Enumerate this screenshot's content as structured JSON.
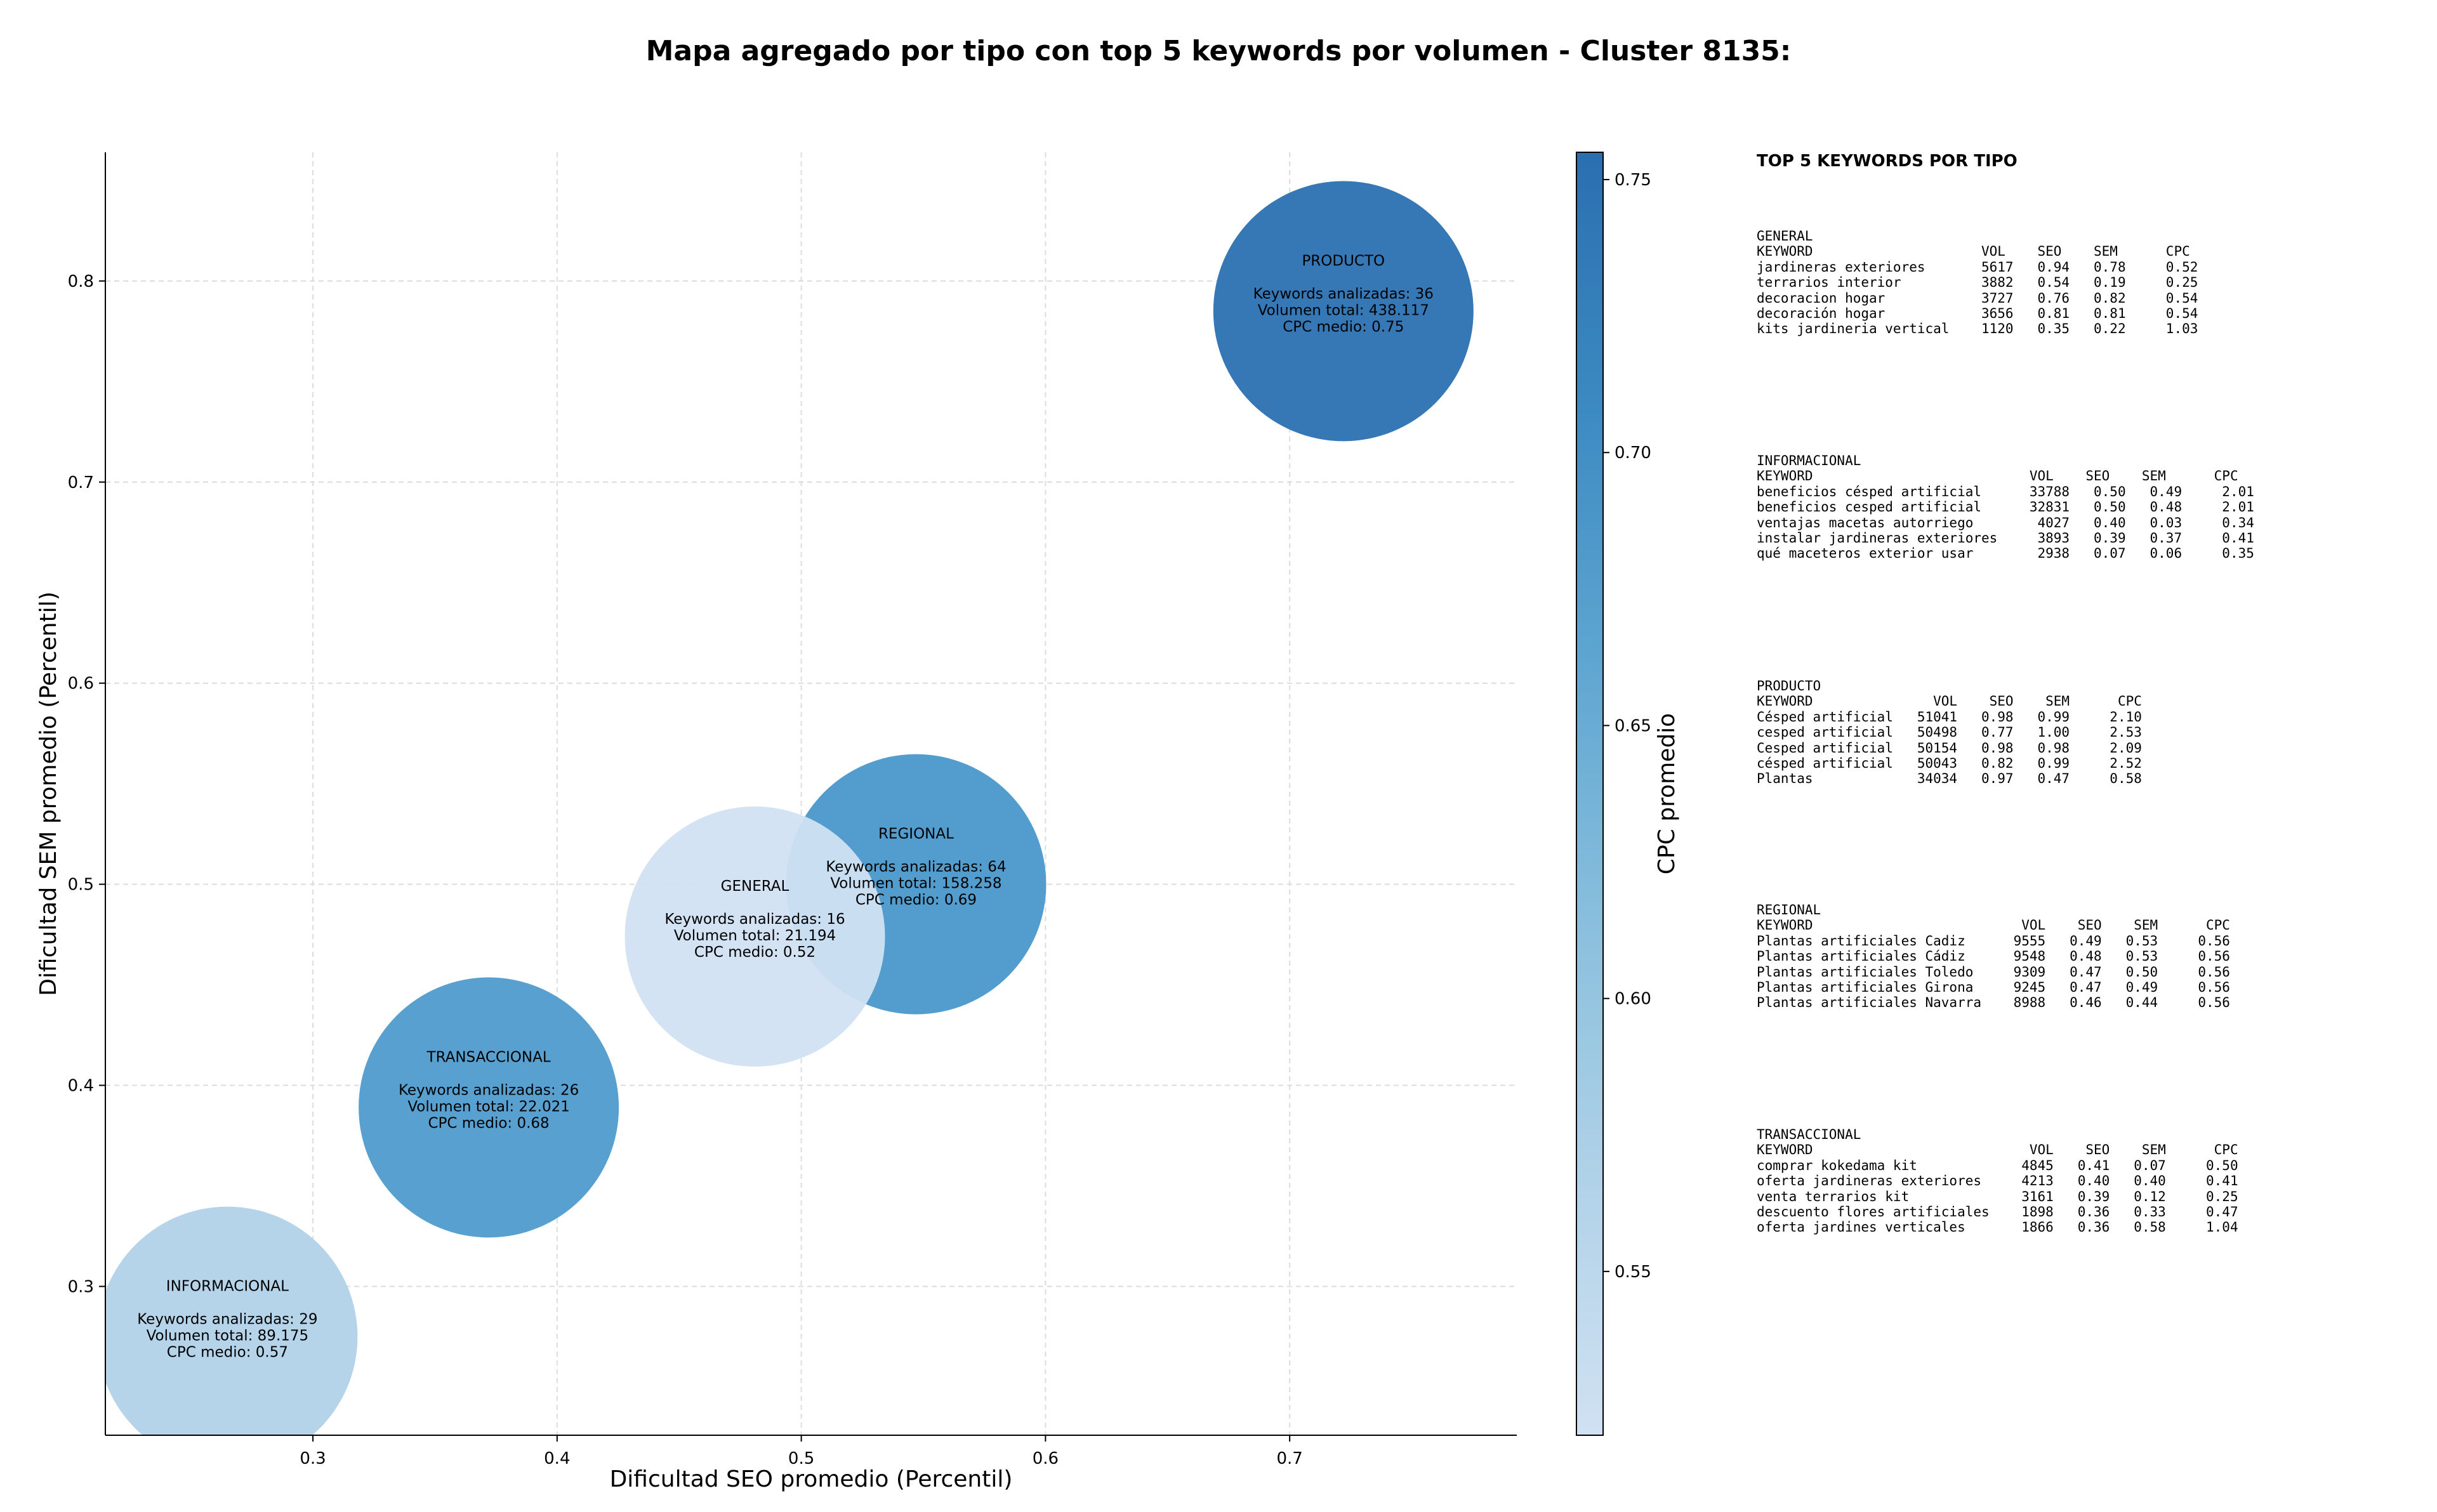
{
  "chart_data": {
    "type": "scatter",
    "title": "Mapa agregado por tipo con top 5 keywords por volumen - Cluster 8135:",
    "xlabel": "Dificultad SEO promedio (Percentil)",
    "ylabel": "Dificultad SEM promedio (Percentil)",
    "xlim": [
      0.215,
      0.793
    ],
    "ylim": [
      0.226,
      0.864
    ],
    "xticks": [
      "0.3",
      "0.4",
      "0.5",
      "0.6",
      "0.7"
    ],
    "yticks": [
      "0.3",
      "0.4",
      "0.5",
      "0.6",
      "0.7",
      "0.8"
    ],
    "grid": true,
    "colorbar": {
      "label": "CPC promedio",
      "range": [
        0.52,
        0.755
      ],
      "ticks": [
        "0.55",
        "0.60",
        "0.65",
        "0.70",
        "0.75"
      ],
      "colors": [
        "#d0e1f2",
        "#b0d2e8",
        "#89bfdd",
        "#5fa6d1",
        "#3c8ac2",
        "#2a6fb0"
      ]
    },
    "points": [
      {
        "label": "PRODUCTO",
        "x": 0.722,
        "y": 0.785,
        "keywords": "Keywords analizadas: 36",
        "volume": "Volumen total: 438.117",
        "cpc_text": "CPC medio: 0.75",
        "cpc": 0.75,
        "color": "#2b70b1"
      },
      {
        "label": "REGIONAL",
        "x": 0.547,
        "y": 0.5,
        "keywords": "Keywords analizadas: 64",
        "volume": "Volumen total: 158.258",
        "cpc_text": "CPC medio: 0.69",
        "cpc": 0.69,
        "color": "#4a98cb"
      },
      {
        "label": "GENERAL",
        "x": 0.481,
        "y": 0.474,
        "keywords": "Keywords analizadas: 16",
        "volume": "Volumen total: 21.194",
        "cpc_text": "CPC medio: 0.52",
        "cpc": 0.52,
        "color": "#d1e2f3"
      },
      {
        "label": "TRANSACCIONAL",
        "x": 0.372,
        "y": 0.389,
        "keywords": "Keywords analizadas: 26",
        "volume": "Volumen total: 22.021",
        "cpc_text": "CPC medio: 0.68",
        "cpc": 0.68,
        "color": "#4f9bcd"
      },
      {
        "label": "INFORMACIONAL",
        "x": 0.265,
        "y": 0.275,
        "keywords": "Keywords analizadas: 29",
        "volume": "Volumen total: 89.175",
        "cpc_text": "CPC medio: 0.57",
        "cpc": 0.57,
        "color": "#b2d2e8"
      }
    ]
  },
  "table": {
    "heading": "TOP 5 KEYWORDS POR TIPO",
    "blocks": [
      {
        "name": "GENERAL",
        "lines": [
          "GENERAL",
          "KEYWORD                     VOL    SEO    SEM      CPC",
          "jardineras exteriores       5617   0.94   0.78     0.52",
          "terrarios interior          3882   0.54   0.19     0.25",
          "decoracion hogar            3727   0.76   0.82     0.54",
          "decoración hogar            3656   0.81   0.81     0.54",
          "kits jardineria vertical    1120   0.35   0.22     1.03"
        ]
      },
      {
        "name": "INFORMACIONAL",
        "lines": [
          "INFORMACIONAL",
          "KEYWORD                           VOL    SEO    SEM      CPC",
          "beneficios césped artificial      33788   0.50   0.49     2.01",
          "beneficios cesped artificial      32831   0.50   0.48     2.01",
          "ventajas macetas autorriego        4027   0.40   0.03     0.34",
          "instalar jardineras exteriores     3893   0.39   0.37     0.41",
          "qué maceteros exterior usar        2938   0.07   0.06     0.35"
        ]
      },
      {
        "name": "PRODUCTO",
        "lines": [
          "PRODUCTO",
          "KEYWORD               VOL    SEO    SEM      CPC",
          "Césped artificial   51041   0.98   0.99     2.10",
          "cesped artificial   50498   0.77   1.00     2.53",
          "Cesped artificial   50154   0.98   0.98     2.09",
          "césped artificial   50043   0.82   0.99     2.52",
          "Plantas             34034   0.97   0.47     0.58"
        ]
      },
      {
        "name": "REGIONAL",
        "lines": [
          "REGIONAL",
          "KEYWORD                          VOL    SEO    SEM      CPC",
          "Plantas artificiales Cadiz      9555   0.49   0.53     0.56",
          "Plantas artificiales Cádiz      9548   0.48   0.53     0.56",
          "Plantas artificiales Toledo     9309   0.47   0.50     0.56",
          "Plantas artificiales Girona     9245   0.47   0.49     0.56",
          "Plantas artificiales Navarra    8988   0.46   0.44     0.56"
        ]
      },
      {
        "name": "TRANSACCIONAL",
        "lines": [
          "TRANSACCIONAL",
          "KEYWORD                           VOL    SEO    SEM      CPC",
          "comprar kokedama kit             4845   0.41   0.07     0.50",
          "oferta jardineras exteriores     4213   0.40   0.40     0.41",
          "venta terrarios kit              3161   0.39   0.12     0.25",
          "descuento flores artificiales    1898   0.36   0.33     0.47",
          "oferta jardines verticales       1866   0.36   0.58     1.04"
        ]
      }
    ]
  }
}
